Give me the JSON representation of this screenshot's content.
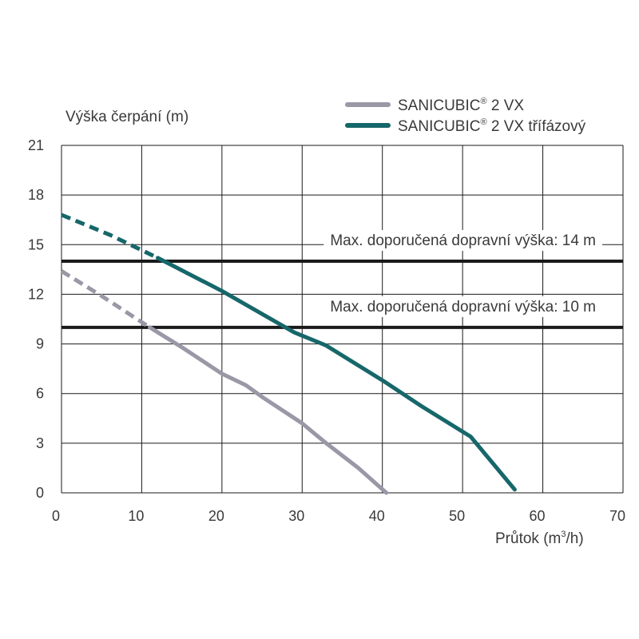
{
  "chart_data": {
    "type": "line",
    "ylabel": "Výška čerpání (m)",
    "xlabel_main": "Průtok (m",
    "xlabel_sup": "3",
    "xlabel_tail": "/h)",
    "xlim": [
      0,
      70
    ],
    "ylim": [
      0,
      21
    ],
    "x_ticks": [
      "0",
      "10",
      "20",
      "30",
      "40",
      "50",
      "60",
      "70"
    ],
    "y_ticks": [
      "0",
      "3",
      "6",
      "9",
      "12",
      "15",
      "18",
      "21"
    ],
    "grid": true,
    "legend_position": "top-right",
    "series": [
      {
        "name_main": "SANICUBIC",
        "name_sup": "®",
        "name_tail": " 2 VX",
        "color": "#9a97a6",
        "dashed_until_x": 11,
        "points": [
          [
            0,
            13.4
          ],
          [
            5,
            11.9
          ],
          [
            11,
            10.0
          ],
          [
            15,
            8.8
          ],
          [
            20,
            7.2
          ],
          [
            23,
            6.5
          ],
          [
            25,
            5.8
          ],
          [
            30,
            4.2
          ],
          [
            33,
            3.0
          ],
          [
            37,
            1.5
          ],
          [
            40.5,
            0
          ]
        ]
      },
      {
        "name_main": "SANICUBIC",
        "name_sup": "®",
        "name_tail": " 2 VX třífázový",
        "color": "#16676a",
        "dashed_until_x": 12,
        "points": [
          [
            0,
            16.8
          ],
          [
            6,
            15.6
          ],
          [
            12,
            14.2
          ],
          [
            20,
            12.2
          ],
          [
            29,
            9.7
          ],
          [
            33,
            8.9
          ],
          [
            37,
            7.7
          ],
          [
            40,
            6.8
          ],
          [
            45,
            5.2
          ],
          [
            51,
            3.4
          ],
          [
            56.5,
            0.2
          ]
        ]
      }
    ],
    "reference_lines": [
      {
        "y": 14,
        "label": "Max. doporučená dopravní výška: 14 m",
        "color": "#1a1a1a"
      },
      {
        "y": 10,
        "label": "Max. doporučená dopravní výška: 10 m",
        "color": "#1a1a1a"
      }
    ]
  }
}
